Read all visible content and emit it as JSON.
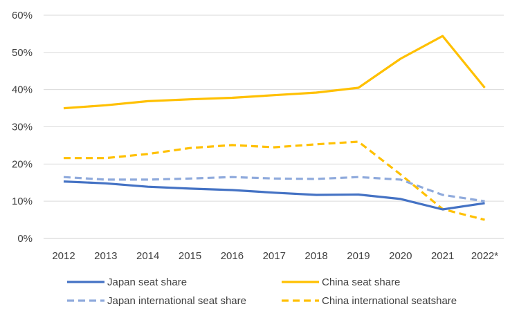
{
  "chart_data": {
    "type": "line",
    "categories": [
      "2012",
      "2013",
      "2014",
      "2015",
      "2016",
      "2017",
      "2018",
      "2019",
      "2020",
      "2021",
      "2022*"
    ],
    "ylim": [
      0,
      60
    ],
    "yticks": [
      0,
      10,
      20,
      30,
      40,
      50,
      60
    ],
    "ytick_labels": [
      "0%",
      "10%",
      "20%",
      "30%",
      "40%",
      "50%",
      "60%"
    ],
    "grid": true,
    "legend_position": "bottom",
    "series": [
      {
        "name": "Japan seat share",
        "color": "#4472C4",
        "dash": "solid",
        "values": [
          15.3,
          14.8,
          13.9,
          13.4,
          13.0,
          12.3,
          11.7,
          11.8,
          10.6,
          7.8,
          9.5
        ]
      },
      {
        "name": "China seat share",
        "color": "#FFC000",
        "dash": "solid",
        "values": [
          35.0,
          35.8,
          36.9,
          37.4,
          37.8,
          38.5,
          39.2,
          40.5,
          48.3,
          54.4,
          40.5
        ]
      },
      {
        "name": "Japan international seat share",
        "color": "#8FAADC",
        "dash": "dashed",
        "values": [
          16.5,
          15.8,
          15.8,
          16.1,
          16.5,
          16.1,
          16.0,
          16.5,
          15.8,
          11.7,
          10.0
        ]
      },
      {
        "name": "China international seatshare",
        "color": "#FFC000",
        "dash": "dashed",
        "values": [
          21.6,
          21.6,
          22.7,
          24.3,
          25.1,
          24.5,
          25.3,
          26.0,
          17.2,
          7.9,
          5.0
        ]
      }
    ]
  }
}
